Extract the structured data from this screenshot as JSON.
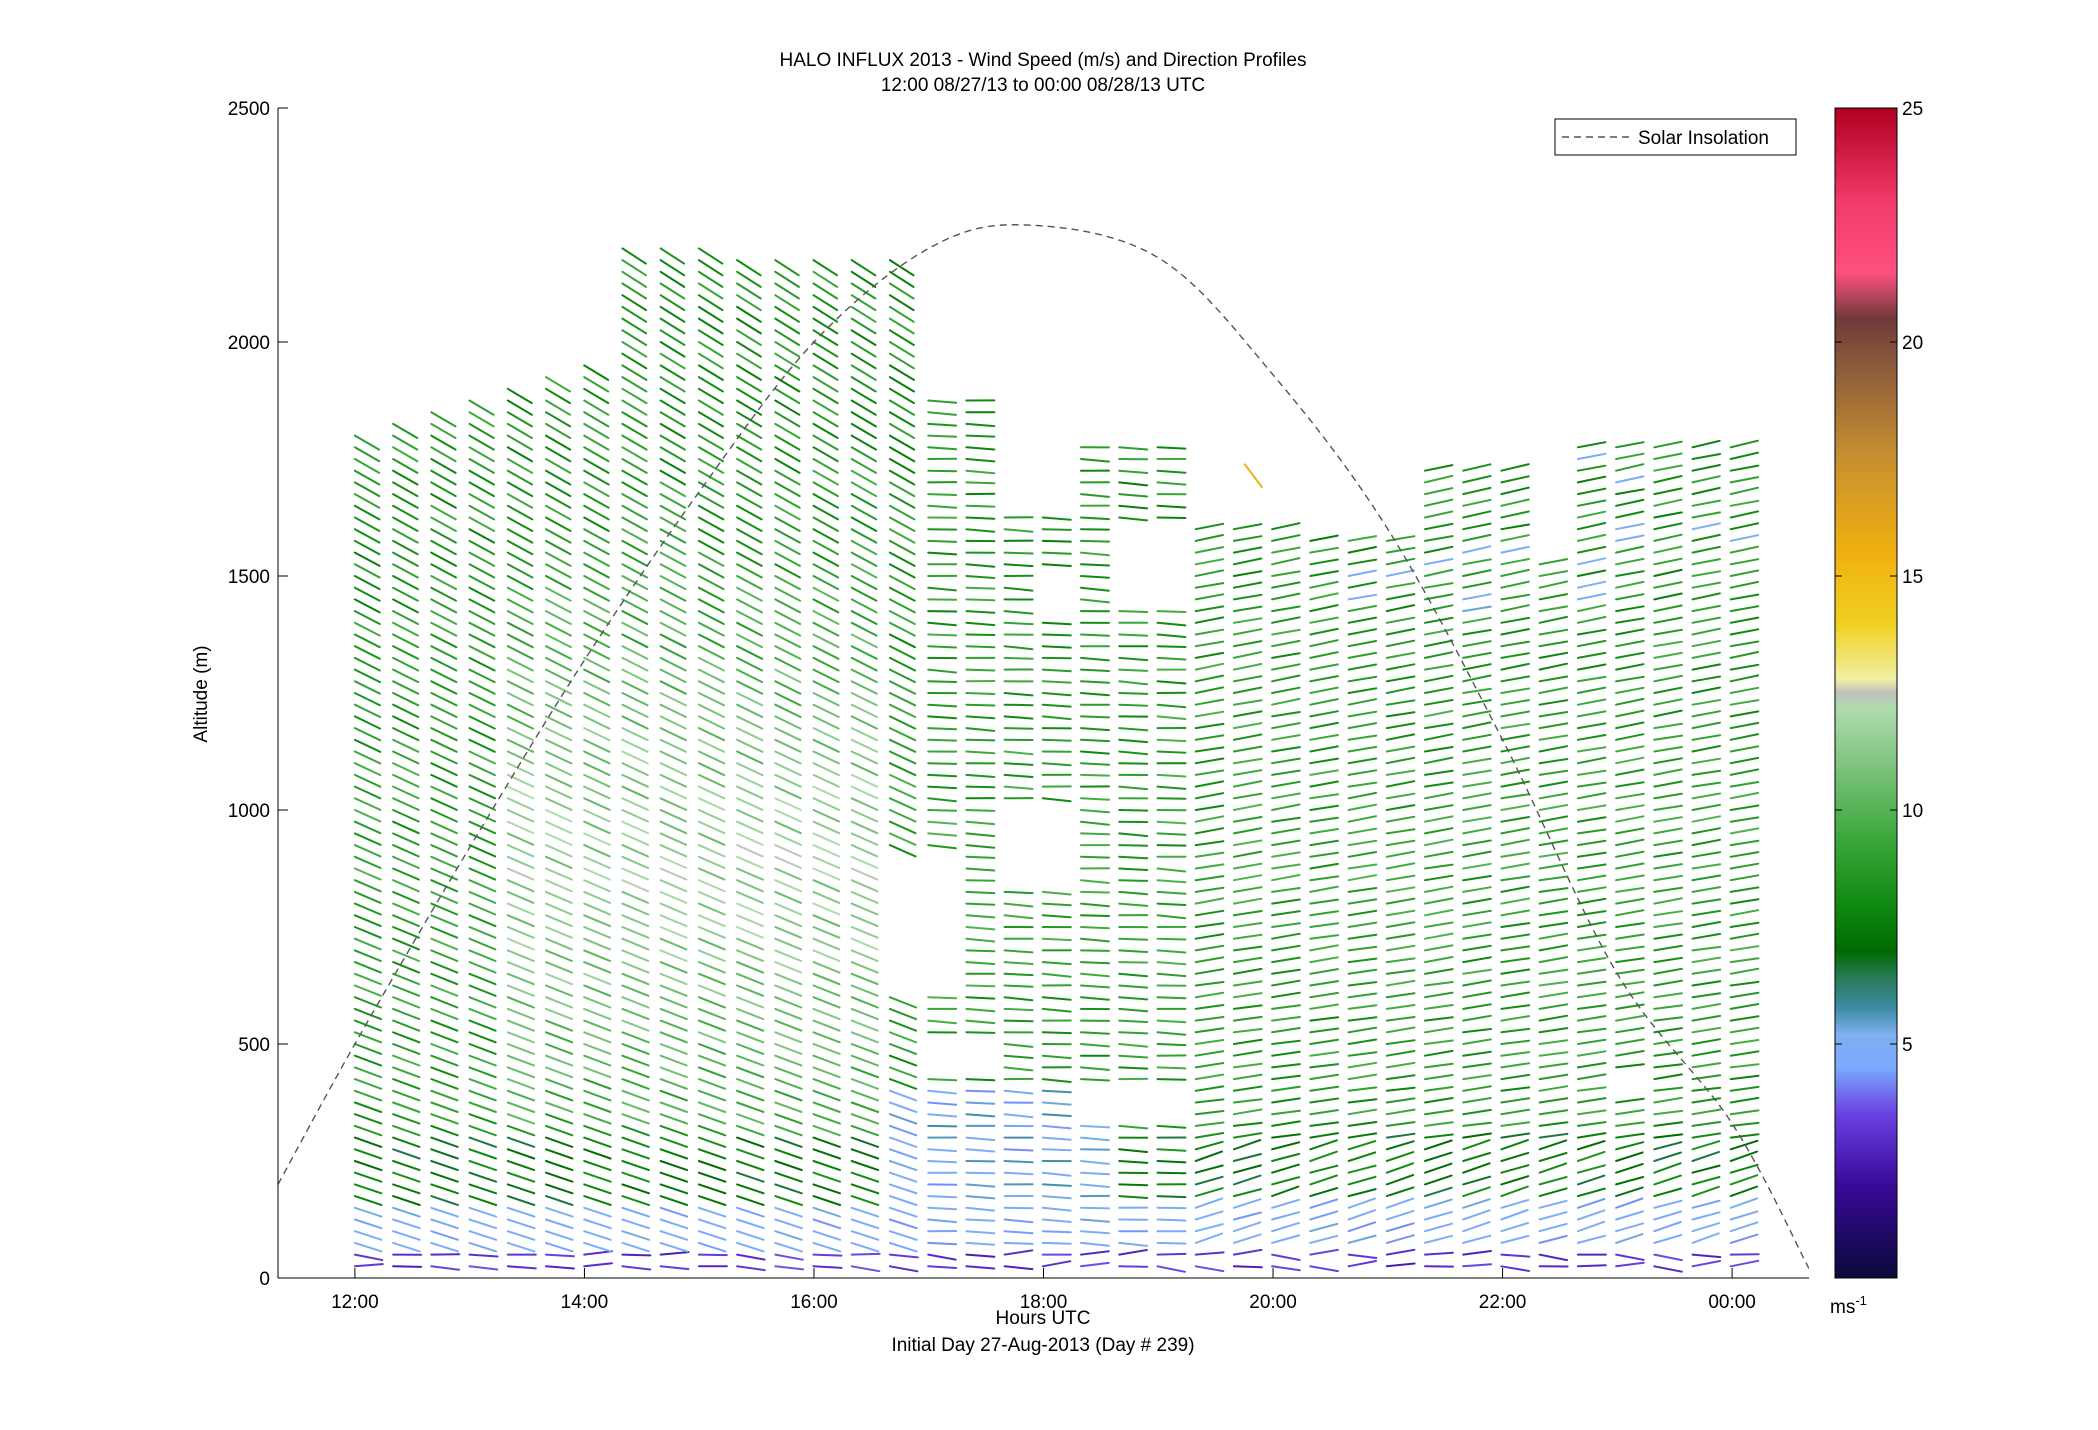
{
  "chart_data": {
    "type": "wind-barb-profile",
    "title": "HALO INFLUX 2013 - Wind Speed (m/s) and Direction Profiles",
    "subtitle": "12:00 08/27/13 to 00:00 08/28/13  UTC",
    "xlabel": "Hours UTC",
    "xlabel2": "Initial Day 27-Aug-2013 (Day # 239)",
    "ylabel": "Altitude (m)",
    "xlim_hours": [
      11.33,
      24.67
    ],
    "ylim": [
      0,
      2500
    ],
    "x_ticks": [
      {
        "hour": 12,
        "label": "12:00"
      },
      {
        "hour": 14,
        "label": "14:00"
      },
      {
        "hour": 16,
        "label": "16:00"
      },
      {
        "hour": 18,
        "label": "18:00"
      },
      {
        "hour": 20,
        "label": "20:00"
      },
      {
        "hour": 22,
        "label": "22:00"
      },
      {
        "hour": 24,
        "label": "00:00"
      }
    ],
    "y_ticks": [
      0,
      500,
      1000,
      1500,
      2000,
      2500
    ],
    "legend": {
      "entries": [
        "Solar Insolation"
      ],
      "placement": "top-right"
    },
    "solar_insolation_curve": {
      "style": "dashed",
      "color": "#555555",
      "points": [
        [
          11.33,
          200
        ],
        [
          12,
          500
        ],
        [
          13,
          920
        ],
        [
          14,
          1320
        ],
        [
          15,
          1680
        ],
        [
          16,
          2000
        ],
        [
          17,
          2200
        ],
        [
          17.85,
          2250
        ],
        [
          19,
          2180
        ],
        [
          20,
          1930
        ],
        [
          21,
          1600
        ],
        [
          22,
          1150
        ],
        [
          23,
          650
        ],
        [
          24,
          330
        ],
        [
          24.67,
          20
        ]
      ]
    },
    "colorbar": {
      "range": [
        0,
        25
      ],
      "ticks": [
        5,
        10,
        15,
        20,
        25
      ],
      "unit_label": "ms",
      "unit_exponent": "-1",
      "stops": [
        {
          "v": 0.0,
          "c": "#0a0a3a"
        },
        {
          "v": 2.0,
          "c": "#3a0a9a"
        },
        {
          "v": 3.5,
          "c": "#6a40e0"
        },
        {
          "v": 4.5,
          "c": "#7aaaff"
        },
        {
          "v": 5.2,
          "c": "#80b0f0"
        },
        {
          "v": 5.8,
          "c": "#3a8aa0"
        },
        {
          "v": 6.4,
          "c": "#2a7a5a"
        },
        {
          "v": 7.0,
          "c": "#006a00"
        },
        {
          "v": 8.0,
          "c": "#108a10"
        },
        {
          "v": 9.5,
          "c": "#40aa40"
        },
        {
          "v": 11.0,
          "c": "#80c480"
        },
        {
          "v": 12.2,
          "c": "#b0dcb0"
        },
        {
          "v": 12.5,
          "c": "#c0c0c0"
        },
        {
          "v": 12.8,
          "c": "#f0f0a0"
        },
        {
          "v": 14.0,
          "c": "#f0d020"
        },
        {
          "v": 15.5,
          "c": "#f0b010"
        },
        {
          "v": 17.5,
          "c": "#c89030"
        },
        {
          "v": 19.5,
          "c": "#8a5a3a"
        },
        {
          "v": 20.5,
          "c": "#703a3a"
        },
        {
          "v": 21.5,
          "c": "#ff5080"
        },
        {
          "v": 23.0,
          "c": "#f03a6a"
        },
        {
          "v": 25.0,
          "c": "#b00020"
        }
      ]
    }
  }
}
